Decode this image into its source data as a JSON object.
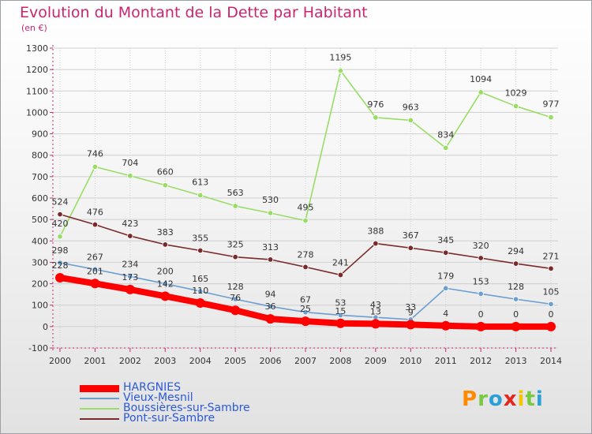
{
  "chart_data": {
    "type": "line",
    "title": "Evolution du Montant de la Dette par Habitant",
    "subtitle": "(en €)",
    "xlabel": "",
    "ylabel": "",
    "ylim": [
      -100,
      1300
    ],
    "yticks": [
      -100,
      0,
      100,
      200,
      300,
      400,
      500,
      600,
      700,
      800,
      900,
      1000,
      1100,
      1200,
      1300
    ],
    "grid": true,
    "legend_position": "bottom-left",
    "x": [
      "2000",
      "2001",
      "2002",
      "2003",
      "2004",
      "2005",
      "2006",
      "2007",
      "2008",
      "2009",
      "2010",
      "2011",
      "2012",
      "2013",
      "2014"
    ],
    "series": [
      {
        "name": "HARGNIES",
        "color": "#ff0000",
        "values": [
          228,
          201,
          173,
          142,
          110,
          76,
          36,
          25,
          15,
          13,
          9,
          4,
          0,
          0,
          0
        ]
      },
      {
        "name": "Vieux-Mesnil",
        "color": "#6c9fd0",
        "values": [
          298,
          267,
          234,
          200,
          165,
          128,
          94,
          67,
          53,
          43,
          33,
          179,
          153,
          128,
          105
        ]
      },
      {
        "name": "Boussières-sur-Sambre",
        "color": "#99dd66",
        "values": [
          420,
          746,
          704,
          660,
          613,
          563,
          530,
          495,
          1195,
          976,
          963,
          834,
          1094,
          1029,
          977
        ]
      },
      {
        "name": "Pont-sur-Sambre",
        "color": "#7a2a2a",
        "values": [
          524,
          476,
          423,
          383,
          355,
          325,
          313,
          278,
          241,
          388,
          367,
          345,
          320,
          294,
          271
        ]
      }
    ]
  },
  "brand": {
    "letters": [
      "P",
      "r",
      "o",
      "x",
      "i",
      "t",
      "i"
    ],
    "colors": [
      "#ff8a00",
      "#7ac943",
      "#2b9fd8",
      "#e5261d",
      "#f7c300",
      "#7ac943",
      "#2b9fd8"
    ]
  }
}
